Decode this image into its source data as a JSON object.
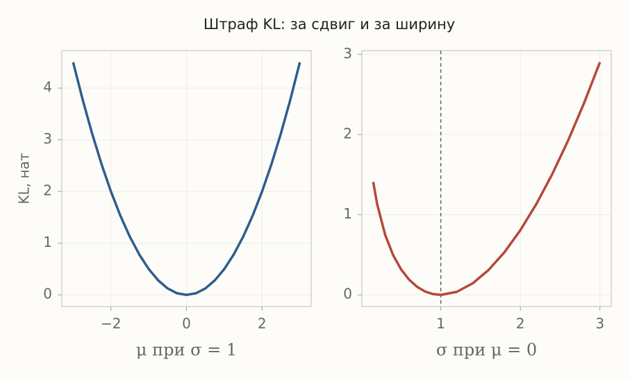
{
  "title": "Штраф KL: за сдвиг и за ширину",
  "chart_data": [
    {
      "type": "line",
      "xlabel": "μ при σ = 1",
      "ylabel": "KL, нат",
      "x": [
        -3,
        -2.75,
        -2.5,
        -2.25,
        -2,
        -1.75,
        -1.5,
        -1.25,
        -1,
        -0.75,
        -0.5,
        -0.25,
        0,
        0.25,
        0.5,
        0.75,
        1,
        1.25,
        1.5,
        1.75,
        2,
        2.25,
        2.5,
        2.75,
        3
      ],
      "series": [
        {
          "color": "#2f5d8c",
          "values": [
            4.5,
            3.78125,
            3.125,
            2.53125,
            2,
            1.53125,
            1.125,
            0.78125,
            0.5,
            0.28125,
            0.125,
            0.03125,
            0,
            0.03125,
            0.125,
            0.28125,
            0.5,
            0.78125,
            1.125,
            1.53125,
            2,
            2.53125,
            3.125,
            3.78125,
            4.5
          ]
        }
      ],
      "xlim": [
        -3.3,
        3.3
      ],
      "ylim": [
        -0.225,
        4.725
      ],
      "xticks": [
        {
          "value": -2,
          "label": "−2"
        },
        0,
        2
      ],
      "yticks": [
        0,
        1,
        2,
        3,
        4
      ],
      "grid": true
    },
    {
      "type": "line",
      "xlabel": "σ при μ = 0",
      "x": [
        0.15,
        0.2,
        0.3,
        0.4,
        0.5,
        0.6,
        0.7,
        0.8,
        0.9,
        1.0,
        1.2,
        1.4,
        1.6,
        1.8,
        2.0,
        2.2,
        2.4,
        2.6,
        2.8,
        3.0
      ],
      "series": [
        {
          "color": "#b5473b",
          "values": [
            1.4084,
            1.1294,
            0.749,
            0.4963,
            0.3181,
            0.1908,
            0.1017,
            0.0431,
            0.0104,
            0,
            0.0377,
            0.1435,
            0.31,
            0.5322,
            0.8069,
            1.1315,
            1.5045,
            1.9245,
            2.3904,
            2.9014
          ]
        }
      ],
      "vline": 1,
      "xlim": [
        0.0075,
        3.1425
      ],
      "ylim": [
        -0.145,
        3.046
      ],
      "xticks": [
        1,
        2,
        3
      ],
      "yticks": [
        0,
        1,
        2,
        3
      ],
      "grid": true
    }
  ]
}
